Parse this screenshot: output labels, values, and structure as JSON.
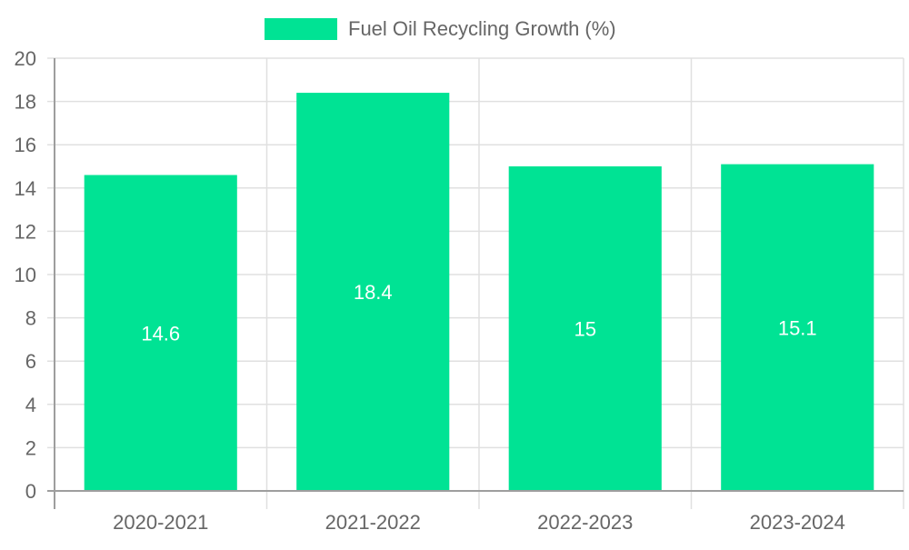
{
  "chart_data": {
    "type": "bar",
    "title": "",
    "legend": {
      "label": "Fuel Oil Recycling Growth (%)",
      "placement": "top-center"
    },
    "categories": [
      "2020-2021",
      "2021-2022",
      "2022-2023",
      "2023-2024"
    ],
    "series": [
      {
        "name": "Fuel Oil Recycling Growth (%)",
        "values": [
          14.6,
          18.4,
          15,
          15.1
        ],
        "labels": [
          "14.6",
          "18.4",
          "15",
          "15.1"
        ]
      }
    ],
    "xlabel": "",
    "ylabel": "",
    "ylim": [
      0,
      20
    ],
    "yticks": [
      0,
      2,
      4,
      6,
      8,
      10,
      12,
      14,
      16,
      18,
      20
    ],
    "grid": true
  },
  "colors": {
    "bar": "#00e394",
    "grid": "#e0e0e0",
    "axis": "#9e9e9e",
    "tick_text": "#666666",
    "legend_text": "#666666",
    "data_label": "#ffffff"
  }
}
